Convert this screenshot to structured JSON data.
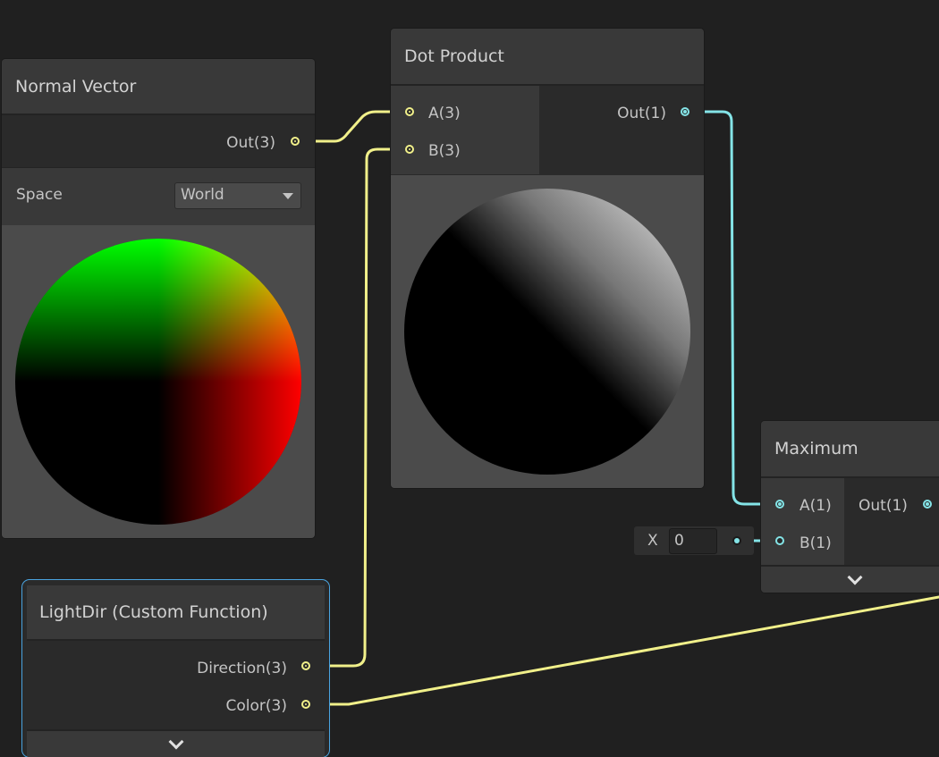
{
  "colors": {
    "background": "#202020",
    "vector3_wire": "#f1f08a",
    "vector1_wire": "#84e4e7",
    "selection": "#4aa3df"
  },
  "normal_vector": {
    "title": "Normal Vector",
    "output": "Out(3)",
    "space_label": "Space",
    "space_value": "World"
  },
  "dot_product": {
    "title": "Dot Product",
    "inputs": [
      "A(3)",
      "B(3)"
    ],
    "output": "Out(1)"
  },
  "maximum": {
    "title": "Maximum",
    "inputs": [
      "A(1)",
      "B(1)"
    ],
    "output": "Out(1)",
    "b_default_label": "X",
    "b_default_value": "0"
  },
  "light_dir": {
    "title": "LightDir (Custom Function)",
    "outputs": [
      "Direction(3)",
      "Color(3)"
    ],
    "selected": true
  }
}
